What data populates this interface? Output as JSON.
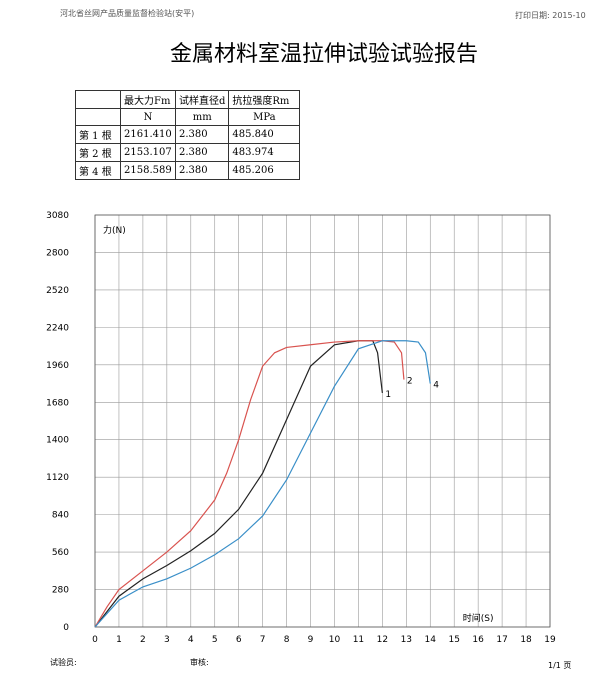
{
  "header": {
    "org": "河北省丝网产品质量监督检验站(安平)",
    "print_date": "打印日期: 2015-10"
  },
  "title": "金属材料室温拉伸试验试验报告",
  "table": {
    "header": [
      "",
      "最大力Fm",
      "试样直径d",
      "抗拉强度Rm"
    ],
    "units": [
      "",
      "N",
      "mm",
      "MPa"
    ],
    "rows": [
      [
        "第 1 根",
        "2161.410",
        "2.380",
        "485.840"
      ],
      [
        "第 2 根",
        "2153.107",
        "2.380",
        "483.974"
      ],
      [
        "第 4 根",
        "2158.589",
        "2.380",
        "485.206"
      ]
    ]
  },
  "chart_data": {
    "type": "line",
    "y_label": "力(N)",
    "x_label": "时间(S)",
    "xlim": [
      0,
      19
    ],
    "xticks": [
      0,
      1,
      2,
      3,
      4,
      5,
      6,
      7,
      8,
      9,
      10,
      11,
      12,
      13,
      14,
      15,
      16,
      17,
      18,
      19
    ],
    "ylim": [
      0,
      3080
    ],
    "yticks": [
      0,
      280,
      560,
      840,
      1120,
      1400,
      1680,
      1960,
      2240,
      2520,
      2800,
      3080
    ],
    "grid": true,
    "series": [
      {
        "name": "1",
        "color": "#222222",
        "x": [
          0,
          1,
          2,
          3,
          4,
          5,
          6,
          7,
          8,
          9,
          10,
          11,
          11.6,
          11.8,
          12
        ],
        "values": [
          0,
          230,
          360,
          460,
          570,
          700,
          880,
          1150,
          1550,
          1950,
          2110,
          2140,
          2140,
          2050,
          1750
        ]
      },
      {
        "name": "2",
        "color": "#d9534f",
        "x": [
          0,
          0.5,
          1,
          2,
          3,
          4,
          5,
          5.5,
          6,
          6.5,
          7,
          7.5,
          8,
          9,
          10,
          11,
          12,
          12.5,
          12.8,
          12.9
        ],
        "values": [
          0,
          150,
          280,
          420,
          560,
          720,
          950,
          1150,
          1400,
          1700,
          1950,
          2050,
          2090,
          2110,
          2130,
          2140,
          2140,
          2130,
          2050,
          1850
        ]
      },
      {
        "name": "4",
        "color": "#3a8fc8",
        "x": [
          0,
          1,
          2,
          3,
          4,
          5,
          6,
          7,
          8,
          9,
          10,
          11,
          12,
          13,
          13.5,
          13.8,
          14
        ],
        "values": [
          0,
          200,
          300,
          360,
          440,
          540,
          660,
          830,
          1100,
          1450,
          1800,
          2080,
          2140,
          2140,
          2130,
          2050,
          1820
        ]
      }
    ]
  },
  "footer": {
    "tester": "试验员:",
    "reviewer": "审核:",
    "page": "1/1 页"
  }
}
